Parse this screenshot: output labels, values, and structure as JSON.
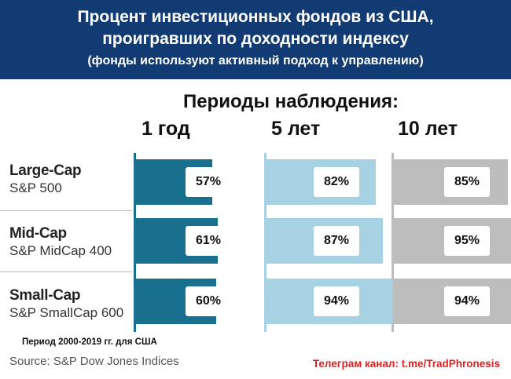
{
  "header": {
    "line1": "Процент инвестиционных фондов из США,",
    "line2": "проигравших по доходности индексу",
    "line3": "(фонды используют активный подход к управлению)"
  },
  "periods_title": "Периоды наблюдения:",
  "chart_data": {
    "type": "bar",
    "orientation": "horizontal",
    "unit": "%",
    "periods": [
      "1 год",
      "5 лет",
      "10 лет"
    ],
    "categories": [
      {
        "name": "Large-Cap",
        "index": "S&P 500"
      },
      {
        "name": "Mid-Cap",
        "index": "S&P MidCap 400"
      },
      {
        "name": "Small-Cap",
        "index": "S&P SmallCap 600"
      }
    ],
    "series": [
      {
        "period": "1 год",
        "values": [
          57,
          61,
          60
        ],
        "labels": [
          "57%",
          "61%",
          "60%"
        ],
        "color": "#186f8e"
      },
      {
        "period": "5 лет",
        "values": [
          82,
          87,
          94
        ],
        "labels": [
          "82%",
          "87%",
          "94%"
        ],
        "color": "#a7d2e4"
      },
      {
        "period": "10 лет",
        "values": [
          85,
          95,
          94
        ],
        "labels": [
          "85%",
          "95%",
          "94%"
        ],
        "color": "#bdbdbd"
      }
    ],
    "axis_line_colors": [
      "#186f8e",
      "#a7d2e4",
      "#bdbdbd"
    ]
  },
  "footer": {
    "period_note": "Период 2000-2019 гг. для США",
    "source": "Source: S&P Dow Jones Indices",
    "telegram": "Телеграм канал: t.me/TradPhronesis"
  }
}
